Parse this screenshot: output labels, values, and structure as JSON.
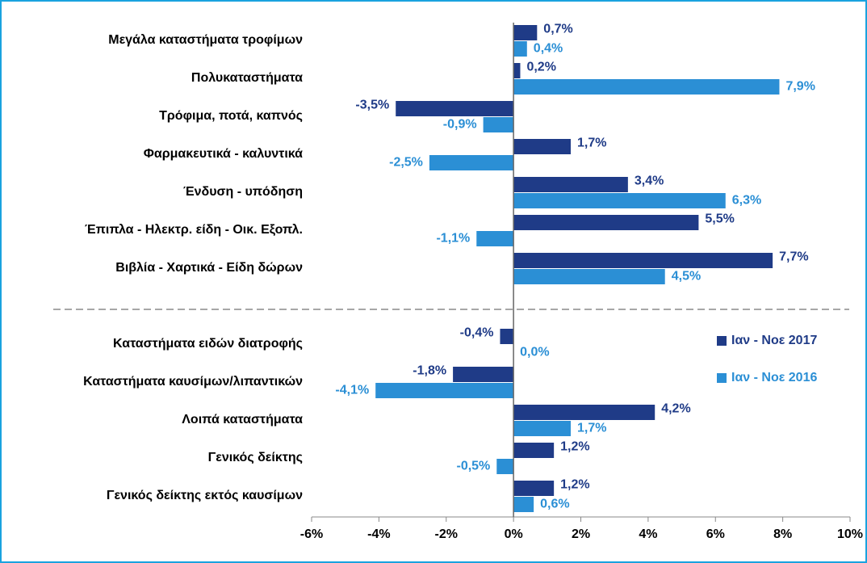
{
  "chart_data": {
    "type": "bar",
    "orientation": "horizontal",
    "categories": [
      "Μεγάλα καταστήματα τροφίμων",
      "Πολυκαταστήματα",
      "Τρόφιμα, ποτά, καπνός",
      "Φαρμακευτικά - καλυντικά",
      "Ένδυση - υπόδηση",
      "Έπιπλα - Ηλεκτρ. είδη - Οικ. Εξοπλ.",
      "Βιβλία - Χαρτικά - Είδη δώρων",
      "Καταστήματα ειδών διατροφής",
      "Καταστήματα καυσίμων/λιπαντικών",
      "Λοιπά καταστήματα",
      "Γενικός δείκτης",
      "Γενικός δείκτης εκτός καυσίμων"
    ],
    "series": [
      {
        "name": "Ιαν - Νοε 2017",
        "color": "#1f3b87",
        "values": [
          0.7,
          0.2,
          -3.5,
          1.7,
          3.4,
          5.5,
          7.7,
          -0.4,
          -1.8,
          4.2,
          1.2,
          1.2
        ],
        "value_labels": [
          "0,7%",
          "0,2%",
          "-3,5%",
          "1,7%",
          "3,4%",
          "5,5%",
          "7,7%",
          "-0,4%",
          "-1,8%",
          "4,2%",
          "1,2%",
          "1,2%"
        ]
      },
      {
        "name": "Ιαν - Νοε 2016",
        "color": "#2b8fd5",
        "values": [
          0.4,
          7.9,
          -0.9,
          -2.5,
          6.3,
          -1.1,
          4.5,
          0.0,
          -4.1,
          1.7,
          -0.5,
          0.6
        ],
        "value_labels": [
          "0,4%",
          "7,9%",
          "-0,9%",
          "-2,5%",
          "6,3%",
          "-1,1%",
          "4,5%",
          "0,0%",
          "-4,1%",
          "1,7%",
          "-0,5%",
          "0,6%"
        ]
      }
    ],
    "xlim": [
      -6,
      10
    ],
    "xticks": [
      {
        "value": -6,
        "label": "-6%"
      },
      {
        "value": -4,
        "label": "-4%"
      },
      {
        "value": -2,
        "label": "-2%"
      },
      {
        "value": 0,
        "label": "0%"
      },
      {
        "value": 2,
        "label": "2%"
      },
      {
        "value": 4,
        "label": "4%"
      },
      {
        "value": 6,
        "label": "6%"
      },
      {
        "value": 8,
        "label": "8%"
      },
      {
        "value": 10,
        "label": "10%"
      }
    ],
    "legend": "right"
  }
}
